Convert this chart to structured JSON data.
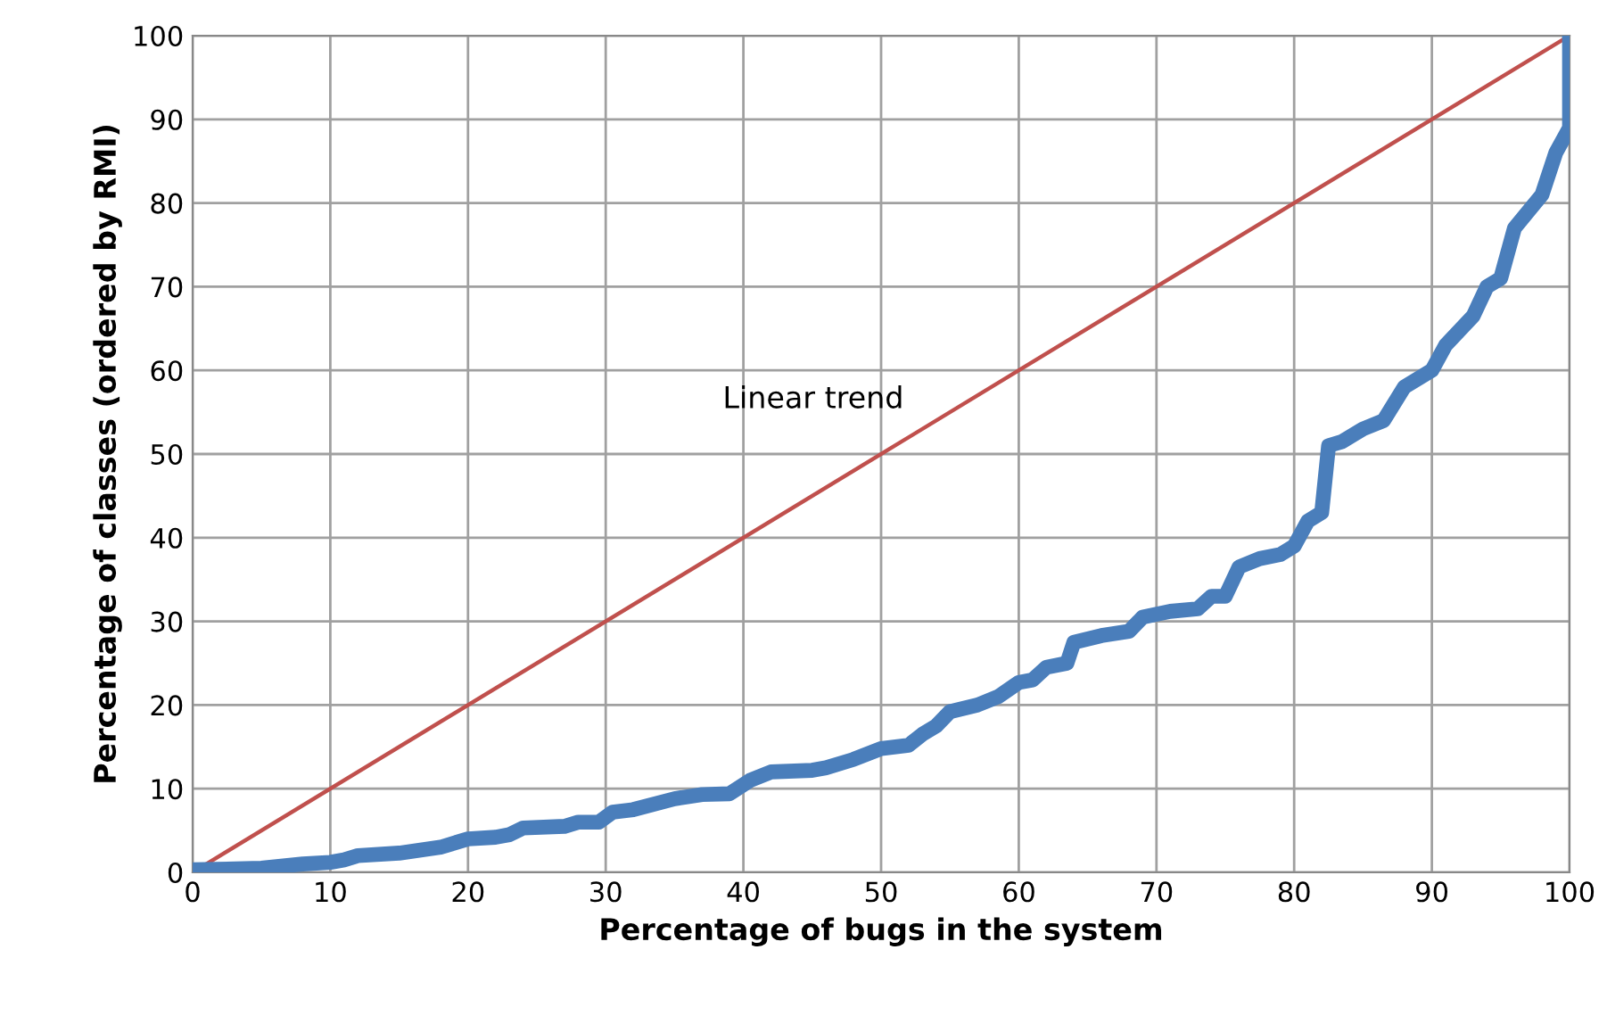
{
  "chart_data": {
    "type": "line",
    "xlabel": "Percentage of bugs in the system",
    "ylabel": "Percentage of classes (ordered by RMI)",
    "xlim": [
      0,
      100
    ],
    "ylim": [
      0,
      100
    ],
    "xticks": [
      0,
      10,
      20,
      30,
      40,
      50,
      60,
      70,
      80,
      90,
      100
    ],
    "yticks": [
      0,
      10,
      20,
      30,
      40,
      50,
      60,
      70,
      80,
      90,
      100
    ],
    "grid": true,
    "marker": "none",
    "line_style": "solid",
    "annotations": [
      "Linear trend"
    ],
    "series": [
      {
        "color": "#4a7ebb",
        "x": [
          0,
          5,
          8,
          10,
          11,
          12,
          15,
          18,
          20,
          22,
          23,
          24,
          27,
          28,
          29.5,
          30.5,
          32,
          35,
          37,
          39,
          40.5,
          42,
          45,
          46,
          48,
          50,
          52,
          53,
          54,
          55,
          57,
          58.5,
          60,
          61,
          62,
          63.5,
          64,
          66,
          68,
          69,
          71,
          73,
          74,
          75,
          76,
          77.5,
          79,
          80,
          81,
          82,
          82.5,
          83.5,
          85,
          86.5,
          88,
          90,
          91,
          93,
          94,
          95,
          96,
          97,
          98,
          99,
          100,
          100
        ],
        "values": [
          0.3,
          0.5,
          1,
          1.2,
          1.5,
          2,
          2.3,
          3,
          4,
          4.2,
          4.5,
          5.3,
          5.5,
          6,
          6,
          7.2,
          7.5,
          8.8,
          9.3,
          9.4,
          11,
          12,
          12.2,
          12.5,
          13.5,
          14.8,
          15.2,
          16.5,
          17.5,
          19.2,
          20,
          21,
          22.7,
          23,
          24.5,
          25,
          27.5,
          28.3,
          28.8,
          30.5,
          31.2,
          31.5,
          33,
          33,
          36.5,
          37.5,
          38,
          39,
          42,
          43,
          51,
          51.5,
          53,
          54,
          58,
          60,
          63,
          66.5,
          70,
          71,
          77,
          79,
          81,
          86,
          89,
          100
        ]
      },
      {
        "color": "#c0504d",
        "x": [
          0,
          100
        ],
        "values": [
          0,
          100
        ]
      }
    ]
  }
}
